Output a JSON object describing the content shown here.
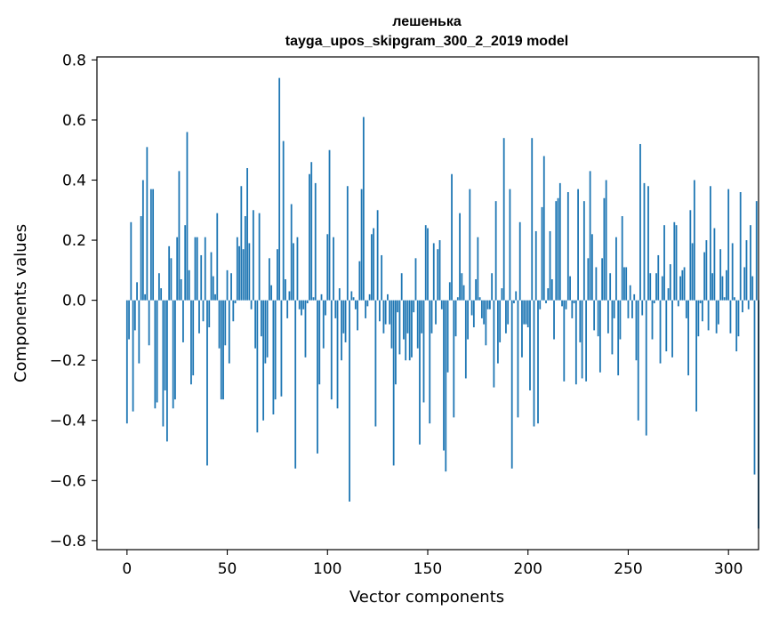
{
  "chart_data": {
    "type": "bar",
    "title": "лешенька",
    "subtitle": "tayga_upos_skipgram_300_2_2019 model",
    "xlabel": "Vector components",
    "ylabel": "Components values",
    "xlim": [
      -15,
      315
    ],
    "ylim": [
      -0.83,
      0.81
    ],
    "xticks": [
      0,
      50,
      100,
      150,
      200,
      250,
      300
    ],
    "xtick_labels": [
      "0",
      "50",
      "100",
      "150",
      "200",
      "250",
      "300"
    ],
    "yticks": [
      -0.8,
      -0.6,
      -0.4,
      -0.2,
      0.0,
      0.2,
      0.4,
      0.6,
      0.8
    ],
    "ytick_labels": [
      "−0.8",
      "−0.6",
      "−0.4",
      "−0.2",
      "0.0",
      "0.2",
      "0.4",
      "0.6",
      "0.8"
    ],
    "grid": false,
    "bar_color": "#1f77b4",
    "values": [
      -0.41,
      -0.13,
      0.26,
      -0.37,
      -0.1,
      0.06,
      -0.21,
      0.28,
      0.4,
      0.02,
      0.51,
      -0.15,
      0.37,
      0.37,
      -0.36,
      -0.34,
      0.09,
      0.04,
      -0.42,
      -0.3,
      -0.47,
      0.18,
      0.14,
      -0.36,
      -0.33,
      0.21,
      0.43,
      0.07,
      -0.14,
      0.25,
      0.56,
      0.1,
      -0.28,
      -0.25,
      0.21,
      0.21,
      -0.11,
      0.15,
      -0.07,
      0.21,
      -0.55,
      -0.09,
      0.16,
      0.08,
      0.02,
      0.29,
      -0.16,
      -0.33,
      -0.33,
      -0.15,
      0.1,
      -0.21,
      0.09,
      -0.07,
      -0.01,
      0.21,
      0.18,
      0.38,
      0.17,
      0.28,
      0.44,
      0.19,
      -0.03,
      0.3,
      -0.16,
      -0.44,
      0.29,
      -0.12,
      -0.4,
      -0.21,
      -0.19,
      0.14,
      0.05,
      -0.38,
      -0.33,
      0.17,
      0.74,
      -0.32,
      0.53,
      0.07,
      -0.06,
      0.03,
      0.32,
      0.19,
      -0.56,
      0.21,
      -0.03,
      -0.05,
      -0.03,
      -0.19,
      -0.01,
      0.42,
      0.46,
      0.01,
      0.39,
      -0.51,
      -0.28,
      0.02,
      -0.16,
      -0.05,
      0.22,
      0.5,
      -0.33,
      0.21,
      -0.06,
      -0.36,
      0.04,
      -0.2,
      -0.11,
      -0.14,
      0.38,
      -0.67,
      0.03,
      0.01,
      -0.03,
      -0.1,
      0.13,
      0.37,
      0.61,
      -0.06,
      -0.02,
      0.02,
      0.22,
      0.24,
      -0.42,
      0.3,
      -0.07,
      0.15,
      -0.11,
      -0.08,
      0.02,
      -0.08,
      -0.16,
      -0.55,
      -0.28,
      -0.04,
      -0.18,
      0.09,
      -0.13,
      -0.2,
      -0.11,
      -0.2,
      -0.19,
      -0.04,
      0.14,
      -0.16,
      -0.48,
      -0.11,
      -0.34,
      0.25,
      0.24,
      -0.41,
      -0.11,
      0.19,
      -0.08,
      0.17,
      0.2,
      -0.03,
      -0.5,
      -0.57,
      -0.24,
      0.06,
      0.42,
      -0.39,
      -0.12,
      0.01,
      0.29,
      0.09,
      0.05,
      -0.26,
      -0.13,
      0.37,
      -0.05,
      -0.09,
      0.07,
      0.21,
      0.01,
      -0.06,
      -0.08,
      -0.15,
      -0.03,
      -0.03,
      0.09,
      -0.29,
      0.33,
      -0.21,
      -0.14,
      0.04,
      0.54,
      -0.11,
      -0.08,
      0.37,
      -0.56,
      -0.01,
      0.03,
      -0.39,
      0.26,
      -0.19,
      -0.08,
      -0.08,
      -0.09,
      -0.3,
      0.54,
      -0.42,
      0.23,
      -0.41,
      -0.03,
      0.31,
      0.48,
      -0.01,
      0.04,
      0.23,
      0.07,
      -0.13,
      0.33,
      0.34,
      0.39,
      -0.02,
      -0.27,
      -0.03,
      0.36,
      0.08,
      -0.06,
      -0.01,
      -0.28,
      0.37,
      -0.14,
      -0.26,
      0.33,
      -0.27,
      0.14,
      0.43,
      0.22,
      -0.1,
      0.11,
      -0.12,
      -0.24,
      0.14,
      0.34,
      0.4,
      -0.11,
      0.09,
      -0.18,
      -0.06,
      0.21,
      -0.25,
      -0.13,
      0.28,
      0.11,
      0.11,
      -0.06,
      0.05,
      -0.06,
      0.02,
      -0.2,
      -0.4,
      0.52,
      -0.05,
      0.39,
      -0.45,
      0.38,
      0.09,
      -0.13,
      -0.01,
      0.09,
      0.15,
      -0.21,
      0.08,
      0.25,
      -0.17,
      0.04,
      0.12,
      -0.19,
      0.26,
      0.25,
      -0.02,
      0.08,
      0.1,
      0.11,
      -0.06,
      -0.25,
      0.3,
      0.19,
      0.4,
      -0.37,
      -0.12,
      -0.01,
      -0.07,
      0.16,
      0.2,
      -0.1,
      0.38,
      0.09,
      0.24,
      -0.11,
      -0.08,
      0.17,
      0.08,
      0.01,
      0.1,
      0.37,
      -0.11,
      0.19,
      0.01,
      -0.17,
      -0.12,
      0.36,
      -0.04,
      0.11,
      0.2,
      -0.03,
      0.25,
      0.08,
      -0.58,
      0.33,
      -0.76
    ]
  }
}
